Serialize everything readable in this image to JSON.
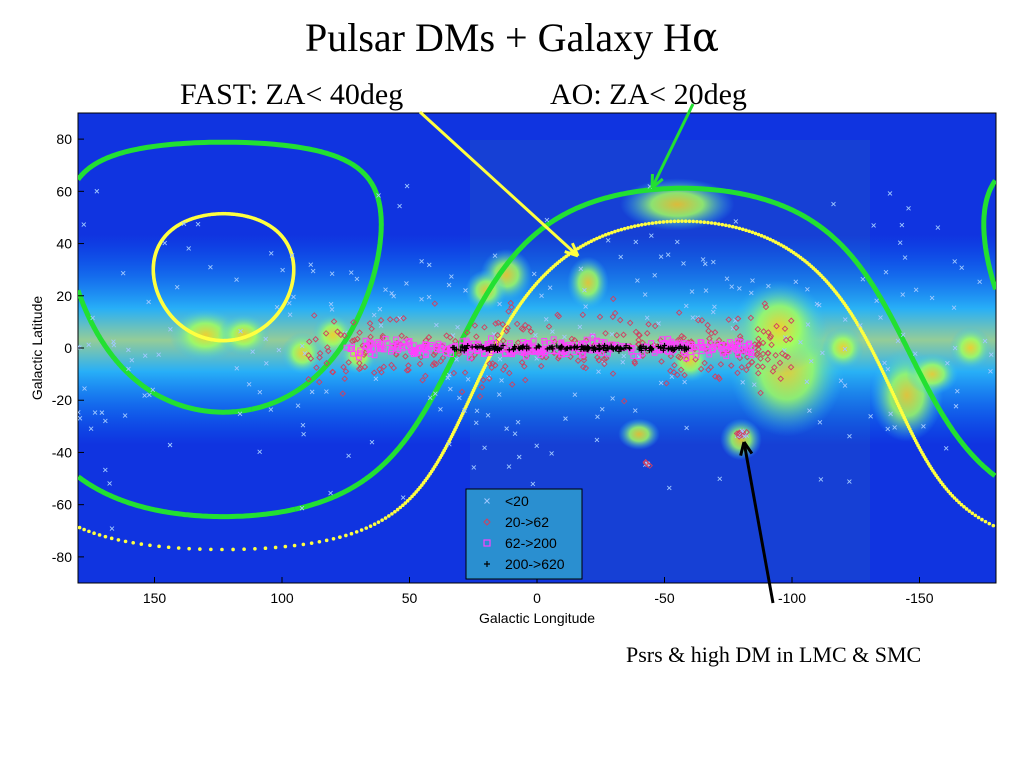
{
  "title_main": "Pulsar DMs + Galaxy H",
  "title_alpha": "α",
  "fast_label": "FAST: ZA< 40deg",
  "ao_label": "AO: ZA< 20deg",
  "note": "Psrs & high DM in LMC & SMC",
  "colors": {
    "background_sky": "#1030e8",
    "plane": "#00e0ff",
    "ao_curve": "#22e032",
    "fast_curve": "#ffff40",
    "arrow_fast": "#ffff40",
    "arrow_ao": "#22e032",
    "arrow_note": "#000000",
    "legend_bg": "#2a8fd0"
  },
  "chart_data": {
    "type": "scatter",
    "xlabel": "Galactic Longitude",
    "ylabel": "Galactic Latitude",
    "xlim": [
      180,
      -180
    ],
    "ylim": [
      -90,
      90
    ],
    "x_ticks": [
      150,
      100,
      50,
      0,
      -50,
      -100,
      -150
    ],
    "y_ticks": [
      80,
      60,
      40,
      20,
      0,
      -20,
      -40,
      -60,
      -80
    ],
    "legend": [
      "<20",
      "20->62",
      "62->200",
      "200->620"
    ],
    "legend_placement": "bottom-center",
    "series": [
      {
        "name": "<20",
        "marker": "x",
        "color": "#a0c8ff"
      },
      {
        "name": "20->62",
        "marker": "diamond",
        "color": "#d04060"
      },
      {
        "name": "62->200",
        "marker": "square",
        "color": "#ff40ff"
      },
      {
        "name": "200->620",
        "marker": "plus",
        "color": "#000000"
      }
    ]
  }
}
